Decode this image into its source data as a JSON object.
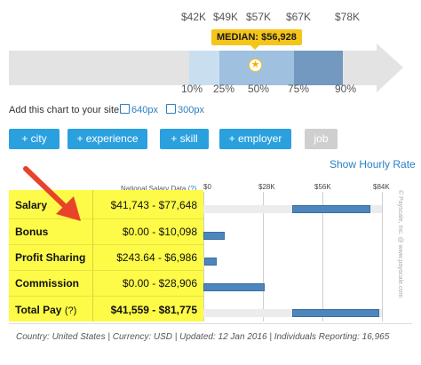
{
  "percentile_chart": {
    "top_labels": [
      "$42K",
      "$49K",
      "$57K",
      "$67K",
      "$78K"
    ],
    "bottom_labels": [
      "10%",
      "25%",
      "50%",
      "75%",
      "90%"
    ],
    "median_label": "MEDIAN: $56,928",
    "colors": {
      "p10_25": "#c9dff0",
      "p25_75": "#9fc0df",
      "p75_90": "#7399c0",
      "track": "#e3e3e3",
      "median": "#f6c51a"
    }
  },
  "add_chart": {
    "label": "Add this chart to your site:",
    "sizes": [
      "640px",
      "300px"
    ]
  },
  "filters": {
    "buttons": [
      "+ city",
      "+ experience",
      "+ skill",
      "+ employer"
    ],
    "disabled_button": "job",
    "hourly_link": "Show Hourly Rate"
  },
  "table": {
    "header_label": "National Salary Data",
    "header_help": "(?)",
    "axis_ticks": [
      "$0",
      "$28K",
      "$56K",
      "$84K"
    ],
    "rows": [
      {
        "label": "Salary",
        "range": "$41,743 - $77,648",
        "low": 41743,
        "high": 77648
      },
      {
        "label": "Bonus",
        "range": "$0.00 - $10,098",
        "low": 0,
        "high": 10098
      },
      {
        "label": "Profit Sharing",
        "range": "$243.64 - $6,986",
        "low": 243.64,
        "high": 6986
      },
      {
        "label": "Commission",
        "range": "$0.00 - $28,906",
        "low": 0,
        "high": 28906
      },
      {
        "label": "Total Pay",
        "label_help": "(?)",
        "range": "$41,559 - $81,775",
        "low": 41559,
        "high": 81775
      }
    ],
    "watermark": "© Payscale, Inc. @ www.payscale.com"
  },
  "footer": "Country: United States | Currency: USD | Updated: 12 Jan 2016 | Individuals Reporting: 16,965",
  "colors": {
    "button": "#2ba0df",
    "highlight": "#fdfb47",
    "bar": "#4d86bd",
    "arrow": "#e8432a",
    "link": "#2a7fc1"
  }
}
